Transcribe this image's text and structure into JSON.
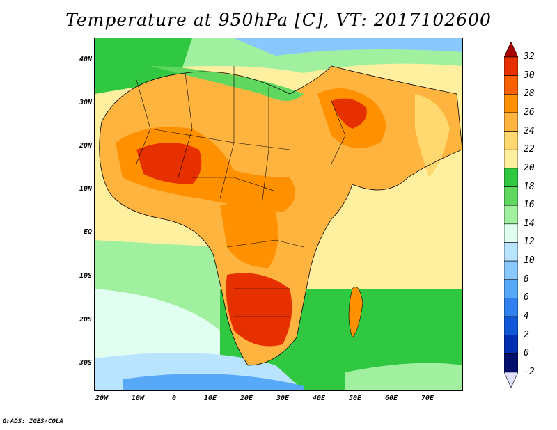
{
  "title": "Temperature at 950hPa [C], VT: 2017102600",
  "credit": "GrADS: IGES/COLA",
  "lat_ticks": [
    "40N",
    "30N",
    "20N",
    "10N",
    "EQ",
    "10S",
    "20S",
    "30S"
  ],
  "lon_ticks": [
    "20W",
    "10W",
    "0",
    "10E",
    "20E",
    "30E",
    "40E",
    "50E",
    "60E",
    "70E"
  ],
  "colorbar": {
    "labels": [
      "32",
      "30",
      "28",
      "26",
      "24",
      "22",
      "20",
      "18",
      "16",
      "14",
      "12",
      "10",
      "8",
      "6",
      "4",
      "2",
      "0",
      "-2"
    ],
    "colors": [
      "#a80000",
      "#e63000",
      "#f86000",
      "#ff9000",
      "#ffb440",
      "#ffd870",
      "#fff0a0",
      "#30c840",
      "#60d860",
      "#a0f0a0",
      "#e0fff0",
      "#b8e4ff",
      "#88c8ff",
      "#58a8f8",
      "#3080f0",
      "#1058d8",
      "#0030b0",
      "#00106c",
      "#e0e0ff"
    ]
  },
  "map_colors": {
    "ocean_warm": "#fff0a0",
    "ocean_mild": "#a0f0a0",
    "ocean_cool": "#30c840",
    "ocean_cold": "#e0fff0",
    "land_hot": "#e63000",
    "land_warm": "#ff9000",
    "land_mild": "#ffb440"
  }
}
